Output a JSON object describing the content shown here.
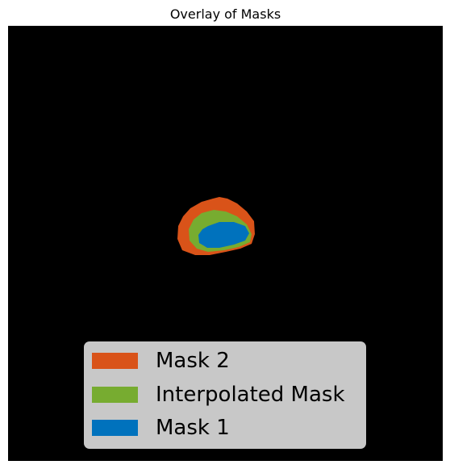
{
  "title": "Overlay of Masks",
  "masks": [
    {
      "name": "Mask 2",
      "color": "#d95319"
    },
    {
      "name": "Interpolated Mask",
      "color": "#77ac30"
    },
    {
      "name": "Mask 1",
      "color": "#0072bd"
    }
  ],
  "legend": {
    "items": [
      {
        "label": "Mask 2",
        "color": "#d95319"
      },
      {
        "label": "Interpolated Mask",
        "color": "#77ac30"
      },
      {
        "label": "Mask 1",
        "color": "#0072bd"
      }
    ]
  },
  "background_color": "#000000",
  "legend_background": "#c8c8c8"
}
